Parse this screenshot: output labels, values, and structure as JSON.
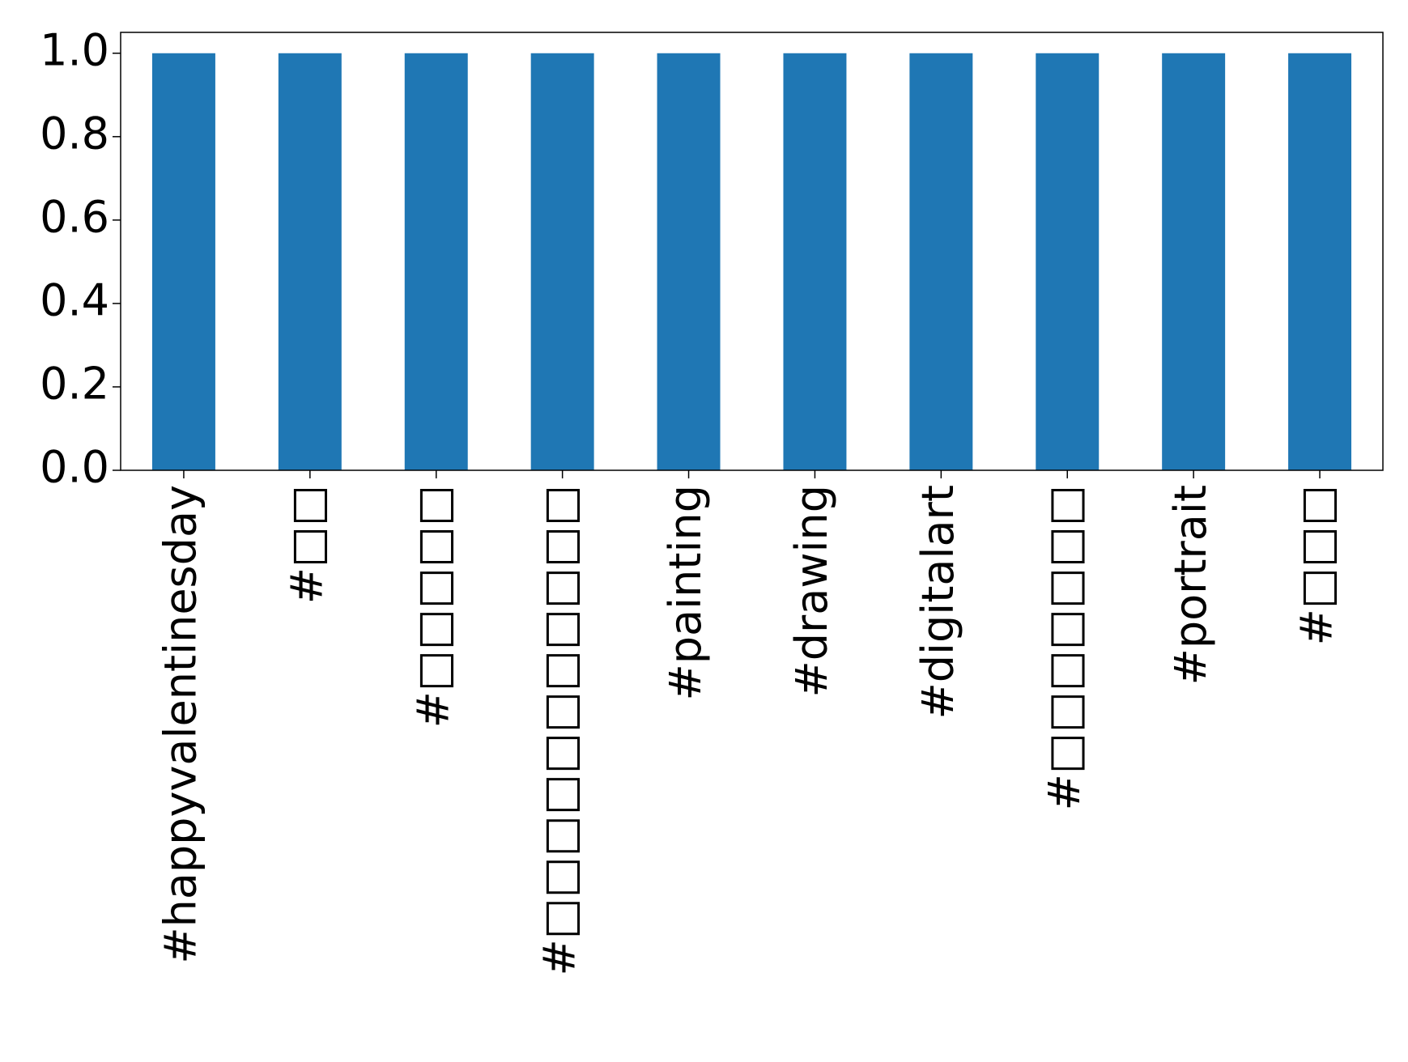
{
  "chart_data": {
    "type": "bar",
    "categories": [
      "#happyvalentinesday",
      "#□□",
      "#□□□□□",
      "#□□□□□□□□□□□",
      "#painting",
      "#drawing",
      "#digitalart",
      "#□□□□□□□",
      "#portrait",
      "#□□□"
    ],
    "values": [
      1,
      1,
      1,
      1,
      1,
      1,
      1,
      1,
      1,
      1
    ],
    "color": "#1f77b4",
    "ylim": [
      0,
      1.05
    ],
    "yticks": [
      {
        "value": 0,
        "label": "0.0"
      },
      {
        "value": 0.2,
        "label": "0.2"
      },
      {
        "value": 0.4,
        "label": "0.4"
      },
      {
        "value": 0.6,
        "label": "0.6"
      },
      {
        "value": 0.8,
        "label": "0.8"
      },
      {
        "value": 1,
        "label": "1.0"
      }
    ],
    "grid": false
  }
}
